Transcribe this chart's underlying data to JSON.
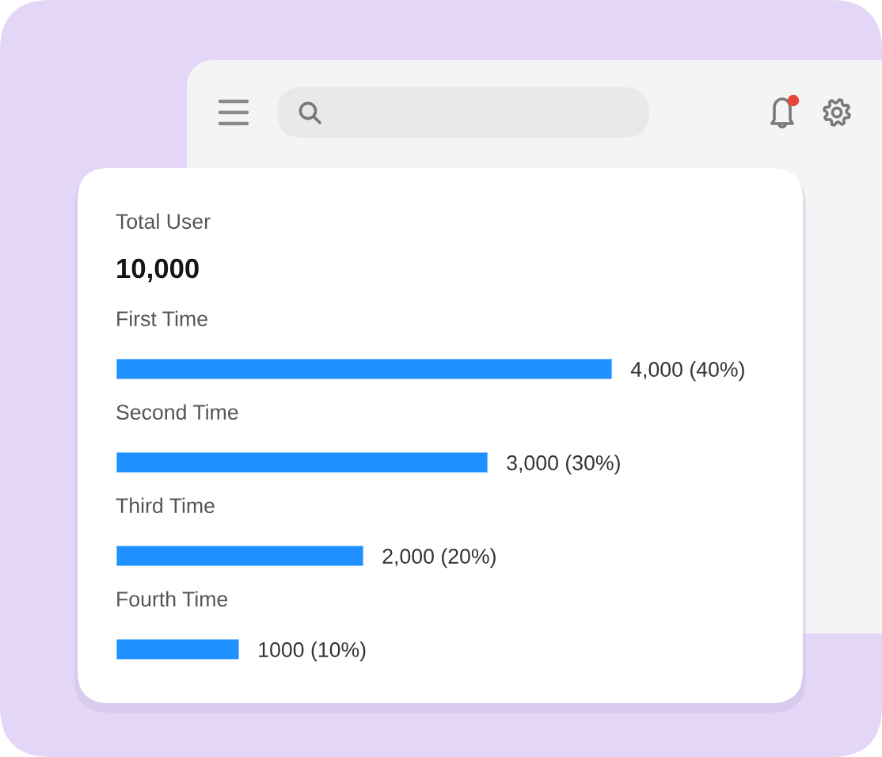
{
  "chart_data": {
    "type": "bar",
    "orientation": "horizontal",
    "title": "Total User",
    "subtitle": "10,000",
    "categories": [
      "First Time",
      "Second Time",
      "Third Time",
      "Fourth Time"
    ],
    "values": [
      4000,
      3000,
      2000,
      1000
    ],
    "value_labels": [
      "4,000 (40%)",
      "3,000 (30%)",
      "2,000 (20%)",
      "1000 (10%)"
    ],
    "color": "#1e90ff",
    "tick_labels": "y"
  }
}
